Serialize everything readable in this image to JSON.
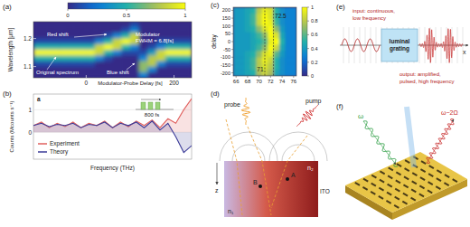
{
  "chart_data": [
    {
      "label": "(a)",
      "type": "heatmap",
      "x": [
        -110,
        -90,
        -70,
        -50,
        -30,
        -10,
        10,
        30,
        50,
        70,
        90,
        110,
        130,
        150,
        170,
        190,
        210,
        230
      ],
      "y": [
        1.25,
        1.23,
        1.21,
        1.19,
        1.17,
        1.15,
        1.13,
        1.11,
        1.09,
        1.07
      ],
      "cells": [
        [
          0,
          0,
          0,
          0,
          0,
          0,
          0,
          0,
          0,
          0,
          0,
          0.1,
          0,
          0,
          0,
          0,
          0,
          0
        ],
        [
          0,
          0,
          0,
          0,
          0,
          0,
          0,
          0,
          0,
          0,
          0.1,
          0.3,
          0,
          0,
          0,
          0,
          0,
          0
        ],
        [
          0,
          0,
          0,
          0,
          0,
          0,
          0,
          0,
          0.1,
          0.3,
          0.5,
          0.85,
          0,
          0,
          0,
          0,
          0,
          0
        ],
        [
          0.1,
          0.1,
          0.1,
          0.1,
          0.1,
          0.1,
          0.1,
          0.3,
          0.5,
          0.85,
          1,
          0.85,
          0,
          0,
          0.1,
          0.1,
          0.1,
          0.1
        ],
        [
          0.5,
          0.5,
          0.5,
          0.5,
          0.5,
          0.5,
          0.5,
          0.85,
          1,
          0.85,
          0.5,
          0.3,
          0,
          0.1,
          0.3,
          0.5,
          0.5,
          0.5
        ],
        [
          1,
          1,
          1,
          1,
          1,
          1,
          1,
          0.85,
          0.5,
          0.3,
          0.1,
          0.1,
          0.1,
          0.4,
          0.85,
          1,
          1,
          1
        ],
        [
          0.5,
          0.5,
          0.5,
          0.5,
          0.5,
          0.5,
          0.5,
          0.3,
          0.1,
          0,
          0,
          0,
          0.3,
          0.8,
          0.85,
          0.5,
          0.5,
          0.5
        ],
        [
          0.1,
          0.1,
          0.1,
          0.1,
          0.1,
          0.1,
          0.1,
          0,
          0,
          0,
          0,
          0,
          0.7,
          0.8,
          0.3,
          0.1,
          0.1,
          0.1
        ],
        [
          0,
          0,
          0,
          0,
          0,
          0,
          0,
          0,
          0,
          0,
          0,
          0,
          0.7,
          0.3,
          0,
          0,
          0,
          0
        ],
        [
          0,
          0,
          0,
          0,
          0,
          0,
          0,
          0,
          0,
          0,
          0,
          0,
          0.3,
          0,
          0,
          0,
          0,
          0
        ]
      ],
      "xlim": [
        -120,
        240
      ],
      "ylim": [
        1.06,
        1.26
      ],
      "xticks": [
        0,
        200
      ],
      "yticks": [
        1.1,
        1.2
      ],
      "x_label": "Modulator-Probe Delay [fs]",
      "y_label": "Wavelength [μm]",
      "colorbar": {
        "range": [
          0,
          1
        ],
        "ticks": [
          0,
          0.5,
          1
        ]
      },
      "annotations": [
        "Red shift",
        "Original spectrum",
        "Blue shift",
        "Modulator",
        "FWHM = 6.8[fs]"
      ]
    },
    {
      "label": "(b)",
      "type": "line",
      "x": [
        0,
        1,
        2,
        3,
        4,
        5,
        6,
        7,
        8,
        9,
        10,
        11,
        12,
        13,
        14,
        15,
        16,
        17,
        18,
        19,
        20
      ],
      "series": [
        {
          "name": "Experiment",
          "color": "#e0605e",
          "values": [
            0.3,
            0.45,
            0.2,
            0.4,
            0.25,
            0.45,
            0.2,
            0.4,
            0.3,
            0.5,
            0.2,
            0.45,
            0.25,
            0.5,
            0.3,
            0.55,
            0.2,
            0.6,
            0.4,
            1.0,
            1.5
          ]
        },
        {
          "name": "Theory",
          "color": "#3b3b98",
          "values": [
            0.3,
            0.4,
            0.25,
            0.35,
            0.3,
            0.4,
            0.2,
            0.35,
            0.3,
            0.45,
            0.2,
            0.4,
            0.3,
            0.45,
            0.2,
            0.5,
            0.1,
            0.4,
            -0.2,
            -0.9,
            -0.6
          ]
        }
      ],
      "xlim": [
        0,
        20
      ],
      "ylim": [
        -1.2,
        1.7
      ],
      "yticks": [
        0,
        1
      ],
      "tick_labels": "y",
      "x_label": "Frequency (THz)",
      "y_label": "Counts (Mcounts s⁻¹)",
      "legend": "lower left",
      "inset": {
        "label": "a",
        "text": "800 fs"
      }
    },
    {
      "label": "(c)",
      "type": "heatmap",
      "x": [
        66,
        67,
        68,
        69,
        70,
        71,
        72,
        73,
        74,
        75,
        76
      ],
      "y": [
        200,
        160,
        120,
        80,
        40,
        0,
        -40,
        -80,
        -120,
        -160,
        -200
      ],
      "cells": [
        [
          0.4,
          0.4,
          0.45,
          0.5,
          0.8,
          0.95,
          0.9,
          0.5,
          0.35,
          0.3,
          0.3
        ],
        [
          0.4,
          0.4,
          0.45,
          0.55,
          0.85,
          1,
          0.9,
          0.5,
          0.35,
          0.3,
          0.3
        ],
        [
          0.4,
          0.4,
          0.45,
          0.55,
          0.85,
          1,
          0.95,
          0.55,
          0.35,
          0.3,
          0.3
        ],
        [
          0.4,
          0.4,
          0.45,
          0.5,
          0.7,
          0.9,
          1,
          0.7,
          0.4,
          0.3,
          0.3
        ],
        [
          0.4,
          0.4,
          0.4,
          0.45,
          0.55,
          0.7,
          1,
          0.9,
          0.45,
          0.3,
          0.3
        ],
        [
          0.4,
          0.4,
          0.4,
          0.45,
          0.5,
          0.6,
          0.95,
          1,
          0.5,
          0.3,
          0.3
        ],
        [
          0.4,
          0.4,
          0.4,
          0.45,
          0.55,
          0.7,
          1,
          0.85,
          0.45,
          0.3,
          0.3
        ],
        [
          0.4,
          0.4,
          0.45,
          0.5,
          0.7,
          0.9,
          0.95,
          0.6,
          0.4,
          0.3,
          0.3
        ],
        [
          0.4,
          0.4,
          0.45,
          0.55,
          0.8,
          0.95,
          0.85,
          0.5,
          0.35,
          0.3,
          0.3
        ],
        [
          0.4,
          0.4,
          0.45,
          0.55,
          0.8,
          0.9,
          0.8,
          0.5,
          0.35,
          0.3,
          0.3
        ],
        [
          0.4,
          0.4,
          0.45,
          0.5,
          0.75,
          0.85,
          0.75,
          0.45,
          0.35,
          0.3,
          0.3
        ]
      ],
      "xlim": [
        65.5,
        76.5
      ],
      "ylim": [
        -220,
        220
      ],
      "xticks": [
        66,
        68,
        70,
        72,
        74,
        76
      ],
      "yticks": [
        -200,
        -150,
        -100,
        -50,
        0,
        50,
        100,
        150,
        200
      ],
      "y_label": "delay",
      "colorbar": {
        "range": [
          0,
          1
        ],
        "ticks": [
          0,
          0.2,
          0.4,
          0.6,
          0.8,
          1
        ]
      },
      "markers": [
        {
          "value": 71,
          "label": "71"
        },
        {
          "value": 72.5,
          "label": "72.5"
        }
      ]
    }
  ],
  "diagrams": {
    "d": {
      "label": "(d)",
      "probe": "probe",
      "pump": "pump",
      "material": "ITO",
      "n1": "n₁",
      "n2": "n₂",
      "point_a": "A",
      "point_b": "B",
      "axis_z": "z"
    },
    "e": {
      "label": "(e)",
      "input": [
        "input: continuous,",
        "low frequency"
      ],
      "grating": [
        "luminal",
        "grating"
      ],
      "output": [
        "output: amplified,",
        "pulsed, high frequency"
      ],
      "axis_x": "x"
    },
    "f": {
      "label": "(f)",
      "beams": [
        "ω",
        "ω−2Ω"
      ]
    }
  }
}
